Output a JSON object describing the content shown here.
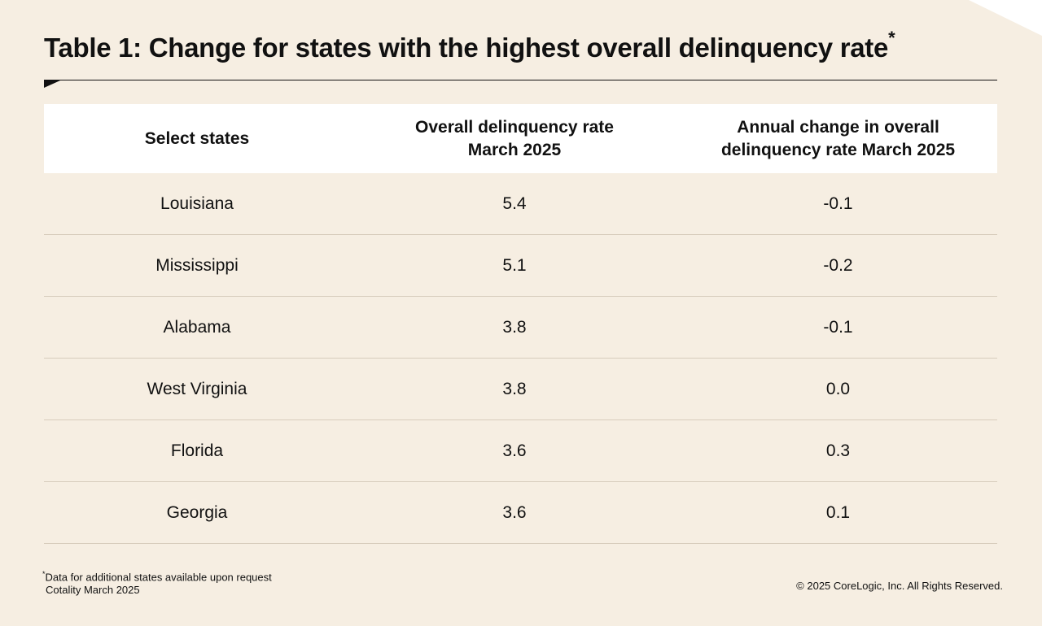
{
  "title": "Table 1: Change for states with the highest overall delinquency rate",
  "title_marker": "*",
  "table": {
    "headers": [
      "Select states",
      "Overall delinquency rate\nMarch 2025",
      "Annual change in overall\ndelinquency rate March 2025"
    ],
    "rows": [
      {
        "state": "Louisiana",
        "rate": "5.4",
        "change": "-0.1"
      },
      {
        "state": "Mississippi",
        "rate": "5.1",
        "change": "-0.2"
      },
      {
        "state": "Alabama",
        "rate": "3.8",
        "change": "-0.1"
      },
      {
        "state": "West Virginia",
        "rate": "3.8",
        "change": "0.0"
      },
      {
        "state": "Florida",
        "rate": "3.6",
        "change": "0.3"
      },
      {
        "state": "Georgia",
        "rate": "3.6",
        "change": "0.1"
      }
    ]
  },
  "footnote": {
    "marker": "*",
    "text": "Data for additional states available upon request",
    "source": "Cotality March 2025"
  },
  "copyright": "© 2025 CoreLogic, Inc. All Rights Reserved.",
  "colors": {
    "background": "#f6eee2",
    "header_background": "#ffffff",
    "text": "#111111",
    "row_divider": "#d7ccbc"
  }
}
